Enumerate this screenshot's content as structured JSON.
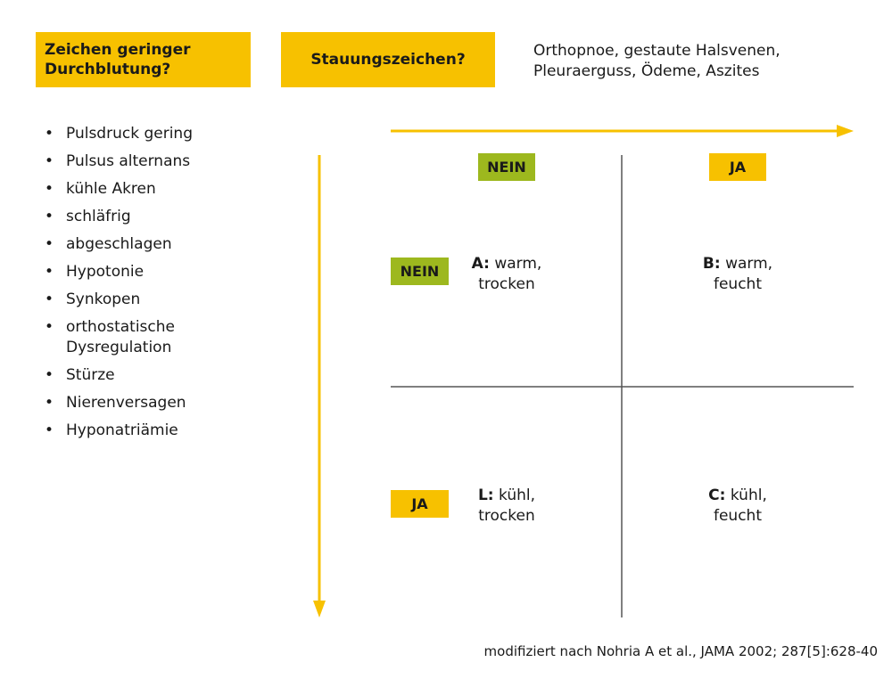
{
  "header": {
    "perfusion_question": "Zeichen geringer Durchblutung?",
    "congestion_question": "Stauungszeichen?",
    "congestion_signs_line1": "Orthopnoe, gestaute Halsvenen,",
    "congestion_signs_line2": "Pleuraerguss, Ödeme, Aszites"
  },
  "hypoperfusion_signs": [
    "Pulsdruck gering",
    "Pulsus alternans",
    "kühle Akren",
    "schläfrig",
    "abgeschlagen",
    "Hypotonie",
    "Synkopen",
    "orthostatische Dysregulation",
    "Stürze",
    "Nierenversagen",
    "Hyponatriämie"
  ],
  "matrix": {
    "col_no": "NEIN",
    "col_yes": "JA",
    "row_no": "NEIN",
    "row_yes": "JA",
    "cell_a": {
      "letter": "A:",
      "line1": "warm,",
      "line2": "trocken"
    },
    "cell_b": {
      "letter": "B:",
      "line1": "warm,",
      "line2": "feucht"
    },
    "cell_l": {
      "letter": "L:",
      "line1": "kühl,",
      "line2": "trocken"
    },
    "cell_c": {
      "letter": "C:",
      "line1": "kühl,",
      "line2": "feucht"
    }
  },
  "source": "modifiziert nach Nohria A et al., JAMA 2002; 287[5]:628-40",
  "colors": {
    "accent_yellow": "#f7c100",
    "accent_green": "#9db81e",
    "grid_line": "#555555"
  }
}
